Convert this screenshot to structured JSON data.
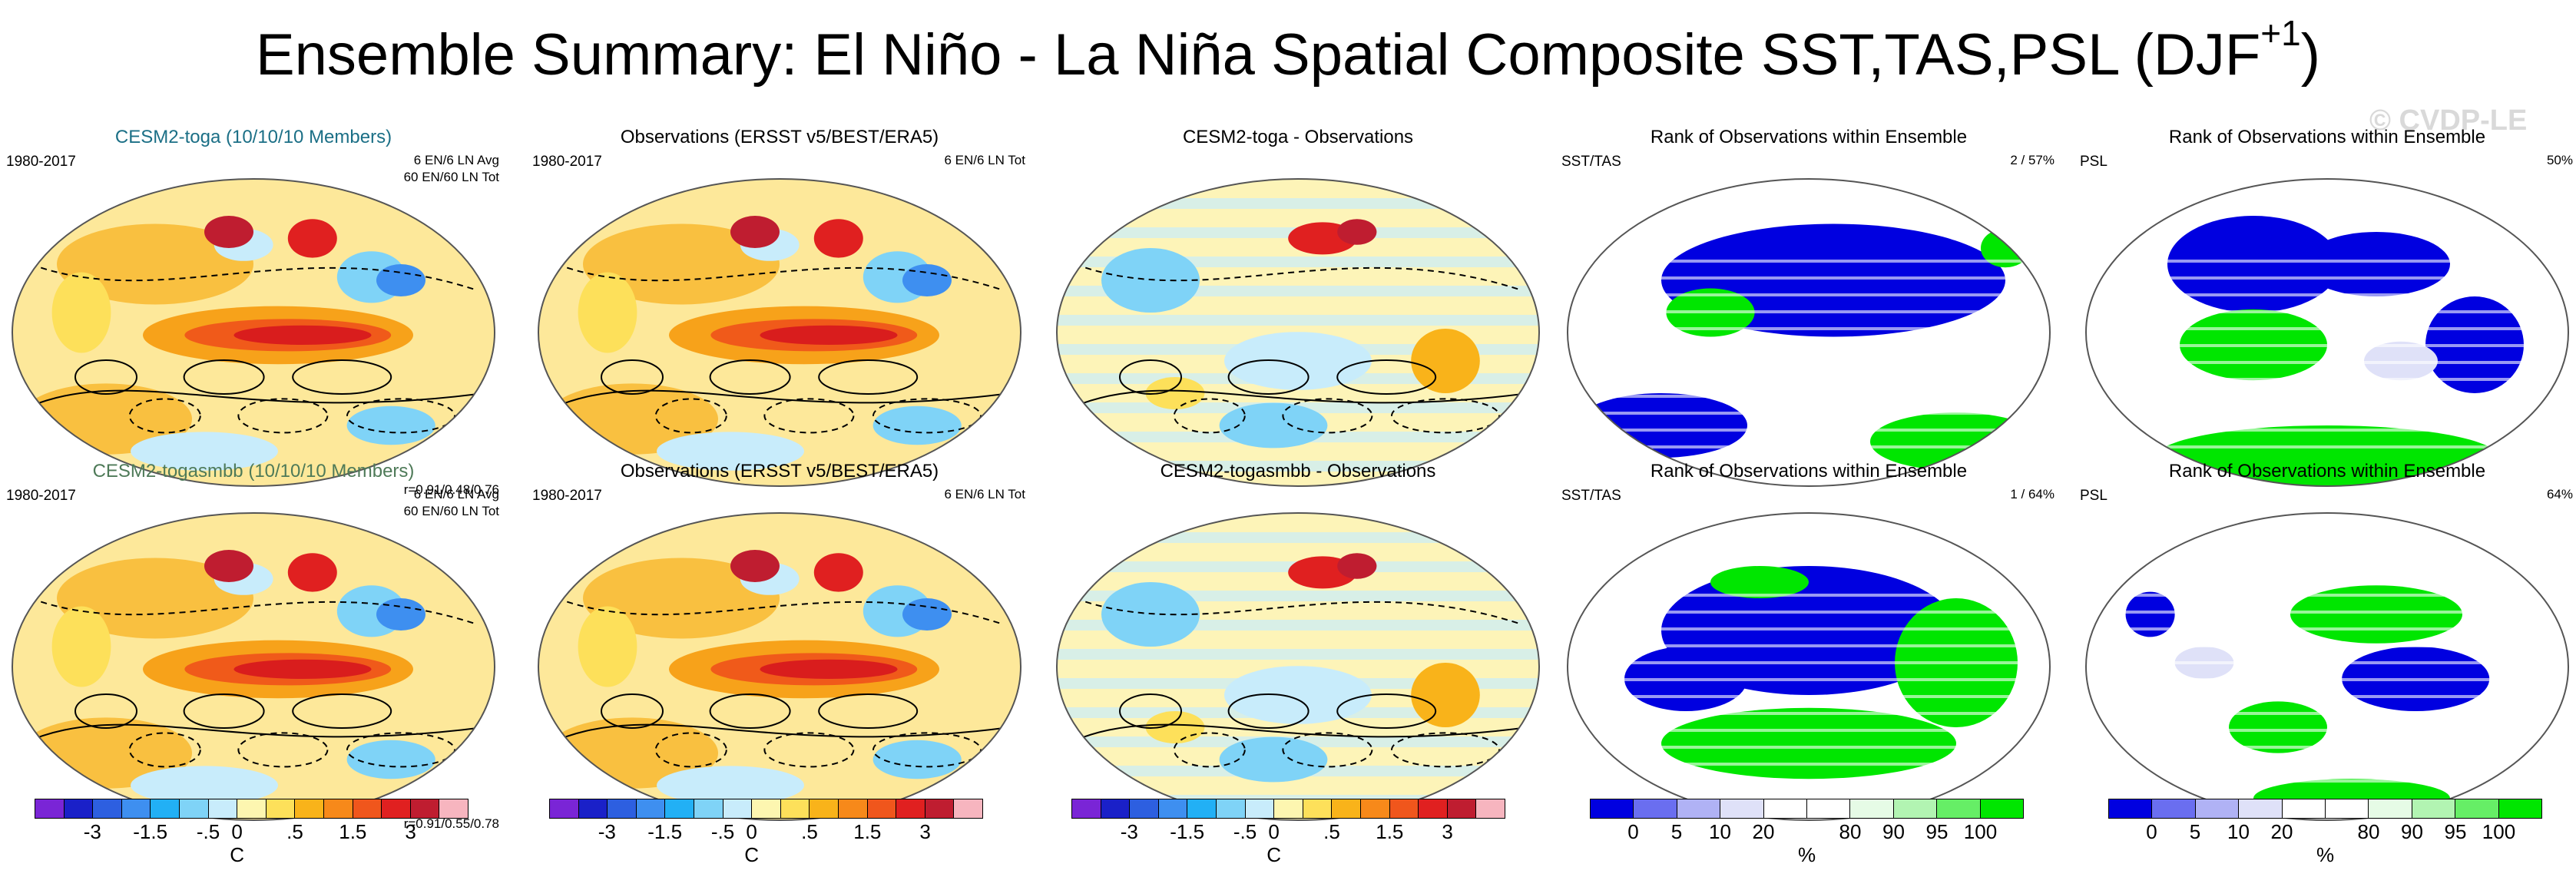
{
  "title": "Ensemble Summary: El Niño - La Niña Spatial Composite SST,TAS,PSL (DJF",
  "title_sup": "+1",
  "title_close": ")",
  "watermark": "© CVDP-LE",
  "panels": {
    "r1c1": {
      "title": "CESM2-toga (10/10/10 Members)",
      "tl": "1980-2017",
      "tr1": "6 EN/6 LN Avg",
      "tr2": "60 EN/60 LN Tot",
      "br": "r=0.91/0.48/0.76"
    },
    "r1c2": {
      "title": "Observations (ERSST v5/BEST/ERA5)",
      "tl": "1980-2017",
      "tr1": "6 EN/6 LN Tot"
    },
    "r1c3": {
      "title": "CESM2-toga - Observations"
    },
    "r1c4": {
      "title": "Rank of Observations within Ensemble",
      "tl": "SST/TAS",
      "tr1": "2 /  57%"
    },
    "r1c5": {
      "title": "Rank of Observations within Ensemble",
      "tl": "PSL",
      "tr1": "50%"
    },
    "r2c1": {
      "title": "CESM2-togasmbb (10/10/10 Members)",
      "tl": "1980-2017",
      "tr1": "6 EN/6 LN Avg",
      "tr2": "60 EN/60 LN Tot",
      "br": "r=0.91/0.55/0.78"
    },
    "r2c2": {
      "title": "Observations (ERSST v5/BEST/ERA5)",
      "tl": "1980-2017",
      "tr1": "6 EN/6 LN Tot"
    },
    "r2c3": {
      "title": "CESM2-togasmbb - Observations"
    },
    "r2c4": {
      "title": "Rank of Observations within Ensemble",
      "tl": "SST/TAS",
      "tr1": "1 /  64%"
    },
    "r2c5": {
      "title": "Rank of Observations within Ensemble",
      "tl": "PSL",
      "tr1": "64%"
    }
  },
  "colorbars": {
    "temp": {
      "colors": [
        "#7a25d6",
        "#1a20c8",
        "#2d5fe0",
        "#3e8ff0",
        "#22b0f5",
        "#7fd3f7",
        "#c8ecfb",
        "#fdf6b0",
        "#fde05a",
        "#f9b31a",
        "#f7891a",
        "#f0561c",
        "#e02020",
        "#bf1d30",
        "#f7b5bf"
      ],
      "ticks": [
        "-3",
        "-1.5",
        "-.5",
        "0",
        ".5",
        "1.5",
        "3"
      ],
      "unit": "C"
    },
    "rank": {
      "colors": [
        "#0000e0",
        "#6a6ef0",
        "#b0b2f5",
        "#dfe1f8",
        "#ffffff",
        "#ffffff",
        "#e6fbe6",
        "#b2f4b2",
        "#66ee66",
        "#00e600"
      ],
      "ticks": [
        "0",
        "5",
        "10",
        "20",
        "80",
        "90",
        "95",
        "100"
      ],
      "unit": "%"
    }
  },
  "chart_data": {
    "type": "heatmap",
    "description_layout": "2 rows x 5 columns of global Robinson-projection maps",
    "temp_levels": [
      -3,
      -1.5,
      -0.5,
      0,
      0.5,
      1.5,
      3
    ],
    "rank_levels": [
      0,
      5,
      10,
      20,
      80,
      90,
      95,
      100
    ],
    "xlabel_temp": "C",
    "xlabel_rank": "%"
  }
}
